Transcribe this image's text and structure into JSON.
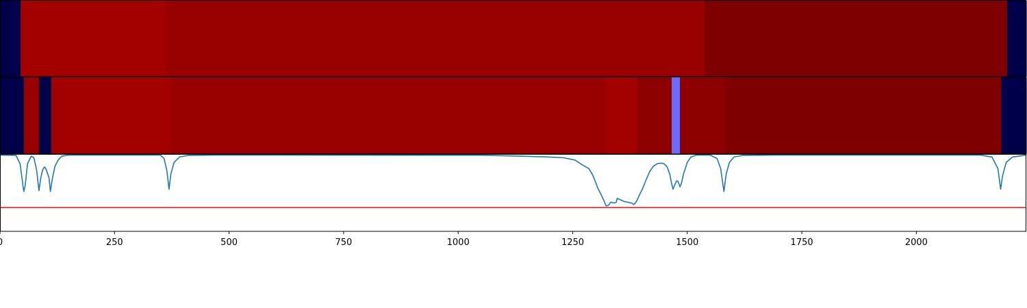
{
  "chart_data": {
    "type": "heatmap",
    "x_ticks": [
      0,
      250,
      500,
      750,
      1000,
      1250,
      1500,
      1750,
      2000
    ],
    "x_tick_labels": [
      "0",
      "250",
      "500",
      "750",
      "1000",
      "1250",
      "1500",
      "1750",
      "2000"
    ],
    "xlim": [
      0,
      2240
    ],
    "grid": false,
    "segment_rows": [
      {
        "segments": [
          {
            "start": 0,
            "end": 45,
            "color": "#00004a"
          },
          {
            "start": 45,
            "end": 362,
            "color": "#a30000"
          },
          {
            "start": 362,
            "end": 1538,
            "color": "#990000"
          },
          {
            "start": 1538,
            "end": 2198,
            "color": "#7e0000"
          },
          {
            "start": 2198,
            "end": 2240,
            "color": "#00004a"
          }
        ]
      },
      {
        "segments": [
          {
            "start": 0,
            "end": 52,
            "color": "#00004a"
          },
          {
            "start": 52,
            "end": 85,
            "color": "#980000"
          },
          {
            "start": 85,
            "end": 112,
            "color": "#00004a"
          },
          {
            "start": 112,
            "end": 372,
            "color": "#a30000"
          },
          {
            "start": 372,
            "end": 1322,
            "color": "#990000"
          },
          {
            "start": 1322,
            "end": 1390,
            "color": "#a30000"
          },
          {
            "start": 1390,
            "end": 1466,
            "color": "#8c0000"
          },
          {
            "start": 1466,
            "end": 1484,
            "color": "#6b6bff"
          },
          {
            "start": 1484,
            "end": 1582,
            "color": "#8c0000"
          },
          {
            "start": 1582,
            "end": 2185,
            "color": "#7e0000"
          },
          {
            "start": 2185,
            "end": 2240,
            "color": "#00004a"
          }
        ]
      }
    ],
    "line_panel": {
      "ylim": [
        0,
        1
      ],
      "threshold": 0.31,
      "threshold_color": "#e01818",
      "line_color": "#1f77b4",
      "series": [
        {
          "values": [
            [
              0,
              0.995
            ],
            [
              35,
              0.99
            ],
            [
              44,
              0.88
            ],
            [
              50,
              0.6
            ],
            [
              52,
              0.52
            ],
            [
              55,
              0.6
            ],
            [
              60,
              0.88
            ],
            [
              68,
              0.98
            ],
            [
              74,
              0.96
            ],
            [
              80,
              0.8
            ],
            [
              85,
              0.53
            ],
            [
              89,
              0.7
            ],
            [
              93,
              0.8
            ],
            [
              97,
              0.84
            ],
            [
              100,
              0.82
            ],
            [
              103,
              0.77
            ],
            [
              107,
              0.7
            ],
            [
              110,
              0.52
            ],
            [
              114,
              0.68
            ],
            [
              120,
              0.85
            ],
            [
              127,
              0.93
            ],
            [
              135,
              0.98
            ],
            [
              150,
              0.995
            ],
            [
              350,
              0.995
            ],
            [
              358,
              0.95
            ],
            [
              364,
              0.8
            ],
            [
              369,
              0.55
            ],
            [
              373,
              0.75
            ],
            [
              380,
              0.9
            ],
            [
              392,
              0.97
            ],
            [
              410,
              0.99
            ],
            [
              470,
              0.995
            ],
            [
              1050,
              0.993
            ],
            [
              1140,
              0.98
            ],
            [
              1200,
              0.97
            ],
            [
              1230,
              0.96
            ],
            [
              1255,
              0.93
            ],
            [
              1270,
              0.87
            ],
            [
              1285,
              0.82
            ],
            [
              1293,
              0.74
            ],
            [
              1300,
              0.64
            ],
            [
              1305,
              0.56
            ],
            [
              1312,
              0.48
            ],
            [
              1318,
              0.4
            ],
            [
              1323,
              0.33
            ],
            [
              1328,
              0.34
            ],
            [
              1333,
              0.38
            ],
            [
              1340,
              0.37
            ],
            [
              1345,
              0.38
            ],
            [
              1347,
              0.43
            ],
            [
              1355,
              0.41
            ],
            [
              1362,
              0.39
            ],
            [
              1370,
              0.38
            ],
            [
              1378,
              0.37
            ],
            [
              1384,
              0.35
            ],
            [
              1390,
              0.4
            ],
            [
              1396,
              0.48
            ],
            [
              1402,
              0.55
            ],
            [
              1410,
              0.67
            ],
            [
              1418,
              0.78
            ],
            [
              1426,
              0.85
            ],
            [
              1434,
              0.88
            ],
            [
              1442,
              0.89
            ],
            [
              1450,
              0.88
            ],
            [
              1456,
              0.84
            ],
            [
              1462,
              0.74
            ],
            [
              1466,
              0.62
            ],
            [
              1469,
              0.55
            ],
            [
              1472,
              0.6
            ],
            [
              1477,
              0.66
            ],
            [
              1480,
              0.65
            ],
            [
              1484,
              0.58
            ],
            [
              1487,
              0.62
            ],
            [
              1492,
              0.75
            ],
            [
              1500,
              0.9
            ],
            [
              1508,
              0.97
            ],
            [
              1520,
              0.995
            ],
            [
              1550,
              0.995
            ],
            [
              1565,
              0.95
            ],
            [
              1573,
              0.82
            ],
            [
              1580,
              0.52
            ],
            [
              1585,
              0.75
            ],
            [
              1592,
              0.9
            ],
            [
              1602,
              0.97
            ],
            [
              1620,
              0.99
            ],
            [
              1700,
              0.995
            ],
            [
              2140,
              0.995
            ],
            [
              2165,
              0.97
            ],
            [
              2178,
              0.82
            ],
            [
              2184,
              0.55
            ],
            [
              2188,
              0.72
            ],
            [
              2196,
              0.9
            ],
            [
              2210,
              0.97
            ],
            [
              2240,
              0.995
            ]
          ]
        }
      ]
    }
  }
}
